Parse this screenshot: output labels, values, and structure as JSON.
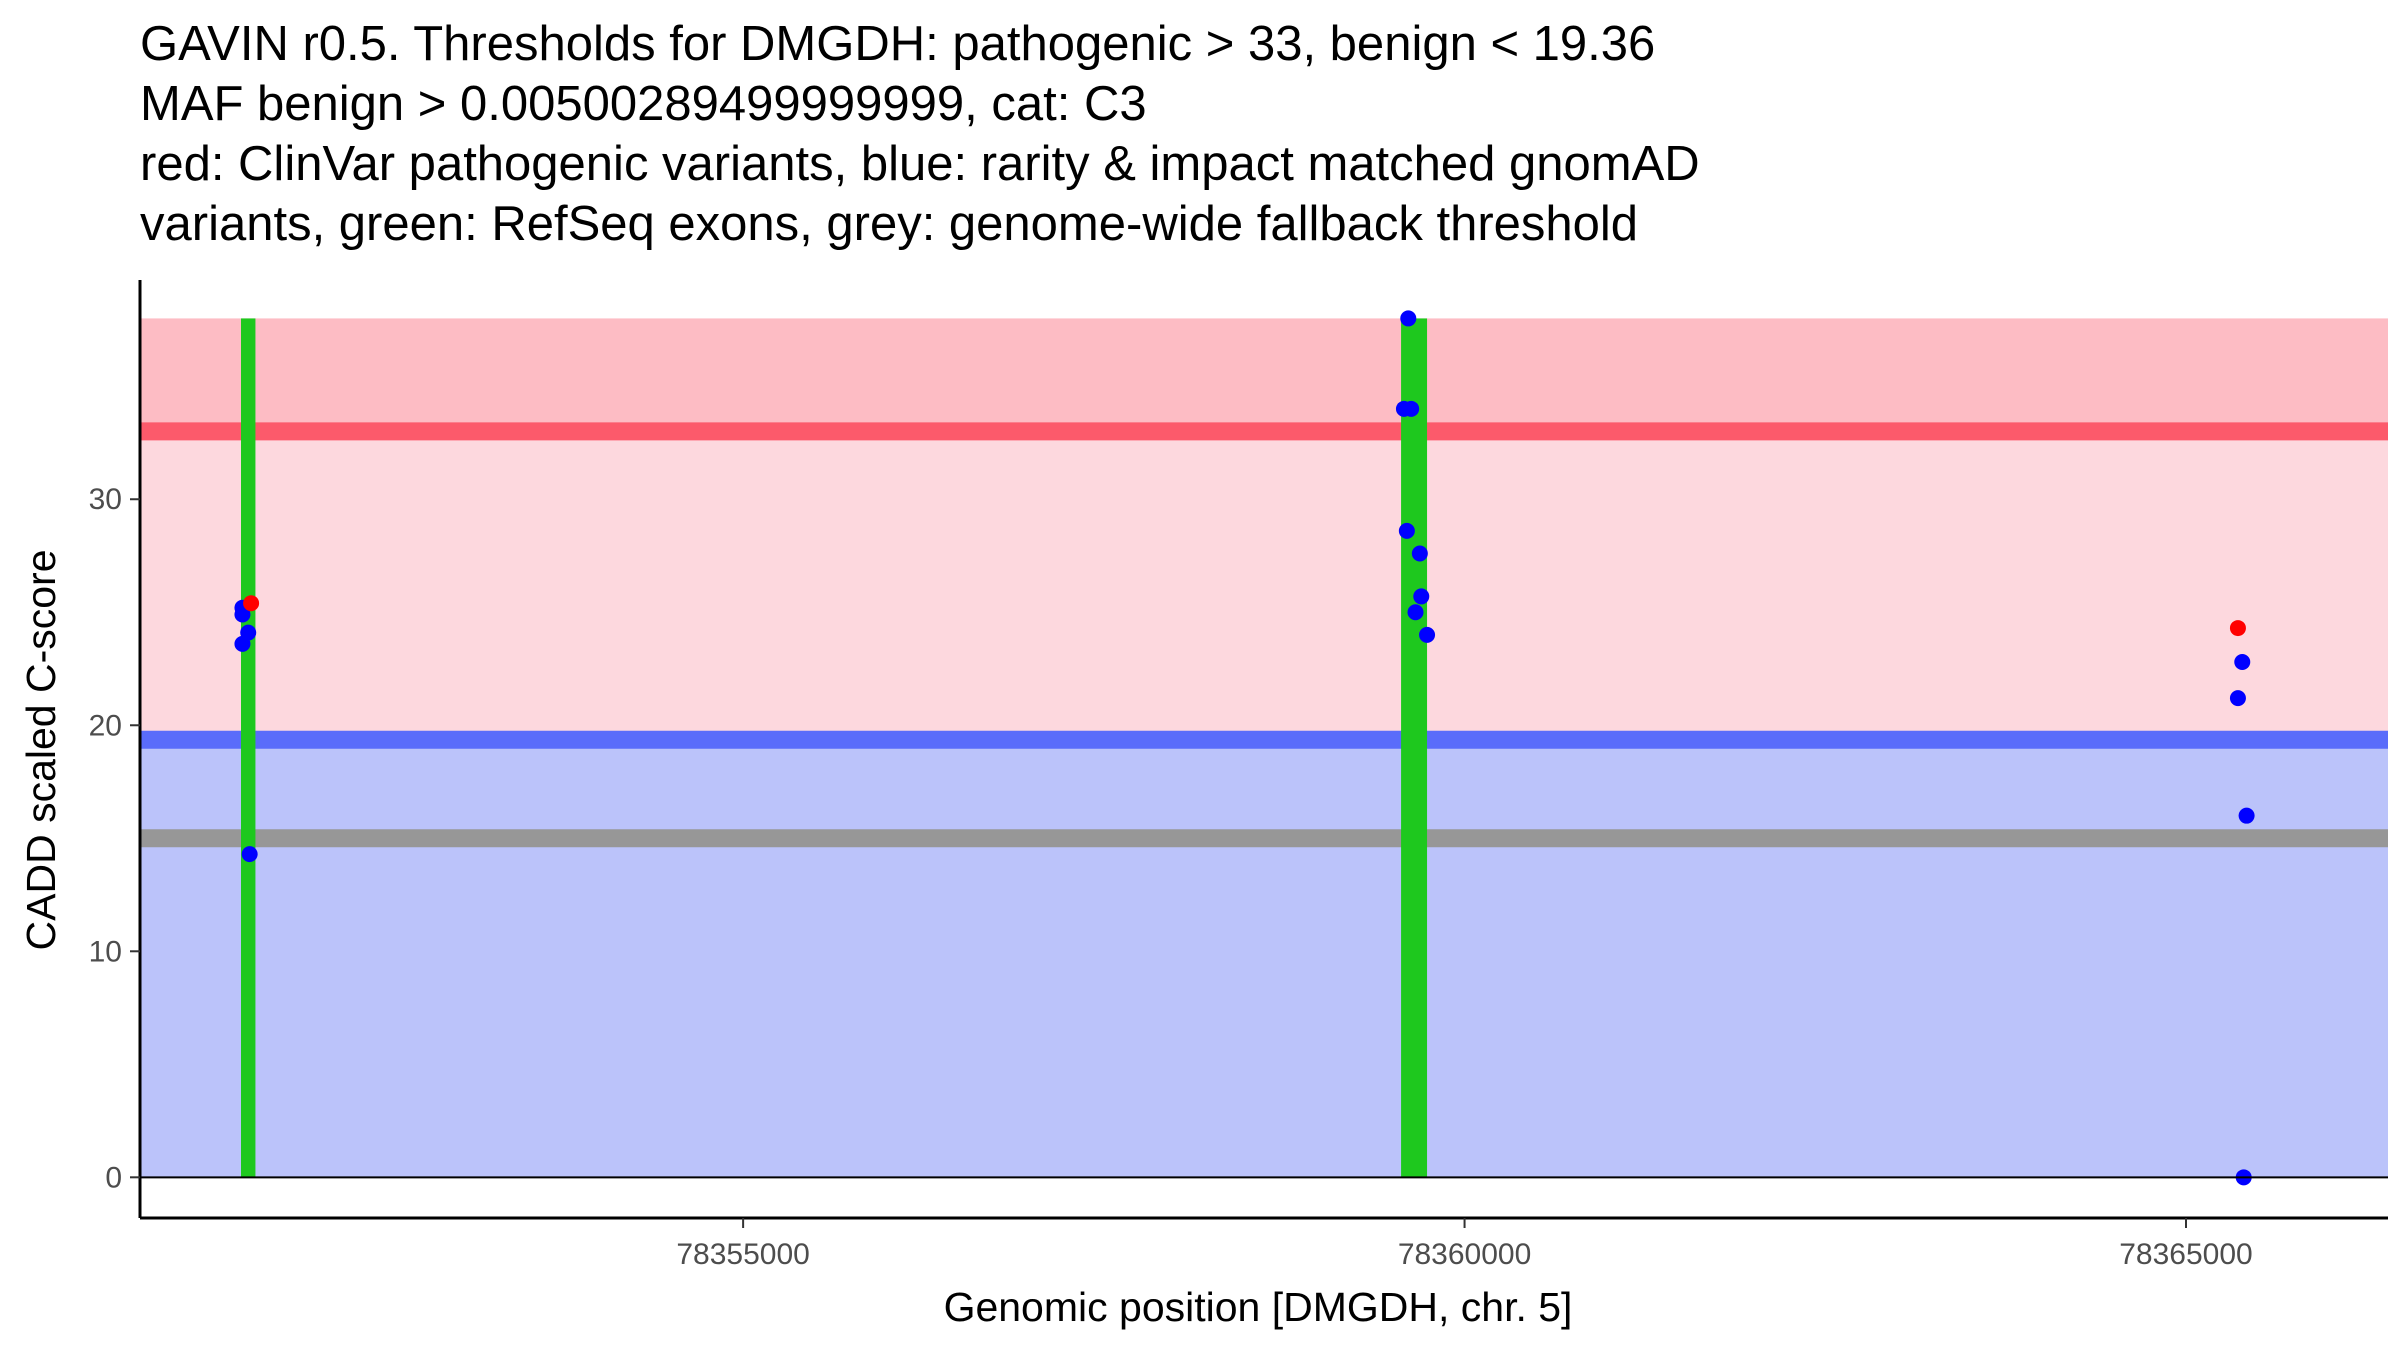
{
  "title_lines": [
    "GAVIN r0.5. Thresholds for DMGDH: pathogenic > 33, benign < 19.36",
    "MAF benign > 0.00500289499999999, cat: C3",
    "red: ClinVar pathogenic variants, blue: rarity & impact matched gnomAD",
    "variants, green: RefSeq exons, grey: genome-wide fallback threshold"
  ],
  "chart_data": {
    "type": "scatter",
    "xlabel": "Genomic position [DMGDH, chr. 5]",
    "ylabel": "CADD scaled C-score",
    "xlim": [
      78350820,
      78366400
    ],
    "ylim": [
      -1.8,
      39.7
    ],
    "x_ticks": [
      78355000,
      78360000,
      78365000
    ],
    "x_tick_labels": [
      "78355000",
      "78360000",
      "78365000"
    ],
    "y_ticks": [
      0,
      10,
      20,
      30
    ],
    "y_tick_labels": [
      "0",
      "10",
      "20",
      "30"
    ],
    "thresholds": {
      "pathogenic": 33,
      "benign": 19.36,
      "fallback": 15,
      "max_score": 38
    },
    "colors": {
      "pathogenic_region": "#fdbcc4",
      "middle_region": "#fdd8de",
      "benign_region": "#bbc3fa",
      "pathogenic_line": "#fc5a6b",
      "benign_line": "#5a6cfa",
      "fallback_line": "#979797",
      "exon": "#1ec81e",
      "clinvar_point": "#ff0000",
      "gnomad_point": "#0000ff"
    },
    "exons": [
      {
        "start": 78351520,
        "end": 78351620
      },
      {
        "start": 78359560,
        "end": 78359740
      }
    ],
    "series": [
      {
        "name": "ClinVar pathogenic variants",
        "points": [
          {
            "x": 78351590,
            "y": 25.4
          },
          {
            "x": 78365360,
            "y": 24.3
          }
        ]
      },
      {
        "name": "rarity & impact matched gnomAD variants",
        "points": [
          {
            "x": 78351530,
            "y": 25.2
          },
          {
            "x": 78351530,
            "y": 24.9
          },
          {
            "x": 78351570,
            "y": 24.1
          },
          {
            "x": 78351530,
            "y": 23.6
          },
          {
            "x": 78351580,
            "y": 14.3
          },
          {
            "x": 78359610,
            "y": 38.0
          },
          {
            "x": 78359580,
            "y": 34.0
          },
          {
            "x": 78359630,
            "y": 34.0
          },
          {
            "x": 78359600,
            "y": 28.6
          },
          {
            "x": 78359690,
            "y": 27.6
          },
          {
            "x": 78359700,
            "y": 25.7
          },
          {
            "x": 78359660,
            "y": 25.0
          },
          {
            "x": 78359740,
            "y": 24.0
          },
          {
            "x": 78365390,
            "y": 22.8
          },
          {
            "x": 78365360,
            "y": 21.2
          },
          {
            "x": 78365420,
            "y": 16.0
          },
          {
            "x": 78365400,
            "y": 0.0
          }
        ]
      }
    ]
  }
}
